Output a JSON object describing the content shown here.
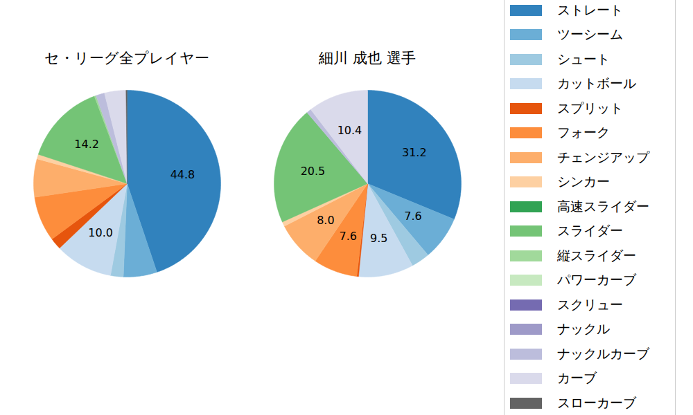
{
  "chart_data": [
    {
      "type": "pie",
      "title": "セ・リーグ全プレイヤー",
      "categories": [
        "ストレート",
        "ツーシーム",
        "シュート",
        "カットボール",
        "スプリット",
        "フォーク",
        "チェンジアップ",
        "シンカー",
        "高速スライダー",
        "スライダー",
        "縦スライダー",
        "パワーカーブ",
        "スクリュー",
        "ナックル",
        "ナックルカーブ",
        "カーブ",
        "スローカーブ"
      ],
      "values": [
        44.8,
        5.8,
        2.2,
        10.0,
        2.0,
        7.8,
        6.6,
        0.8,
        0,
        14.2,
        0.3,
        0,
        0,
        0,
        1.5,
        3.7,
        0.2
      ],
      "value_labels": [
        "44.8",
        null,
        null,
        "10.0",
        null,
        null,
        null,
        null,
        null,
        "14.2",
        null,
        null,
        null,
        null,
        null,
        null,
        null
      ],
      "colors": [
        "#3182bd",
        "#6baed6",
        "#9ecae1",
        "#c6dbef",
        "#e6550d",
        "#fd8d3c",
        "#fdae6b",
        "#fdd0a2",
        "#31a354",
        "#74c476",
        "#a1d99b",
        "#c7e9c0",
        "#756bb1",
        "#9e9ac8",
        "#bcbddc",
        "#dadaeb",
        "#636363"
      ],
      "data_labels": true,
      "legend": "right"
    },
    {
      "type": "pie",
      "title": "細川 成也  選手",
      "categories": [
        "ストレート",
        "ツーシーム",
        "シュート",
        "カットボール",
        "スプリット",
        "フォーク",
        "チェンジアップ",
        "シンカー",
        "高速スライダー",
        "スライダー",
        "縦スライダー",
        "パワーカーブ",
        "スクリュー",
        "ナックル",
        "ナックルカーブ",
        "カーブ",
        "スローカーブ"
      ],
      "values": [
        31.2,
        7.6,
        3.2,
        9.5,
        0.3,
        7.6,
        8.0,
        0.8,
        0,
        20.5,
        0,
        0,
        0,
        0,
        0.8,
        10.4,
        0
      ],
      "value_labels": [
        "31.2",
        "7.6",
        null,
        "9.5",
        null,
        "7.6",
        "8.0",
        null,
        null,
        "20.5",
        null,
        null,
        null,
        null,
        null,
        "10.4",
        null
      ],
      "colors": [
        "#3182bd",
        "#6baed6",
        "#9ecae1",
        "#c6dbef",
        "#e6550d",
        "#fd8d3c",
        "#fdae6b",
        "#fdd0a2",
        "#31a354",
        "#74c476",
        "#a1d99b",
        "#c7e9c0",
        "#756bb1",
        "#9e9ac8",
        "#bcbddc",
        "#dadaeb",
        "#636363"
      ],
      "data_labels": true,
      "legend": "right"
    }
  ]
}
